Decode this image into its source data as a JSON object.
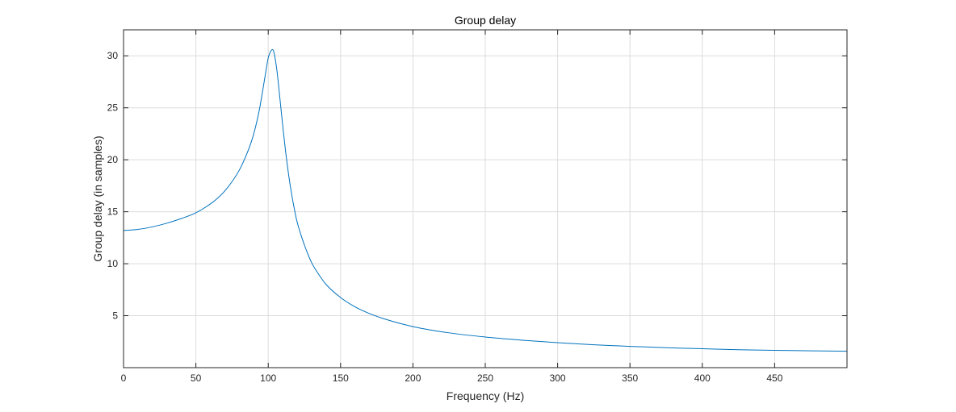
{
  "chart_data": {
    "type": "line",
    "title": "Group delay",
    "xlabel": "Frequency (Hz)",
    "ylabel": "Group delay (in samples)",
    "xlim": [
      0,
      500
    ],
    "ylim": [
      0,
      32.5
    ],
    "xticks": [
      0,
      50,
      100,
      150,
      200,
      250,
      300,
      350,
      400,
      450
    ],
    "yticks": [
      5,
      10,
      15,
      20,
      25,
      30
    ],
    "grid": true,
    "colors": {
      "line": "#0072BD",
      "grid": "#DCDCDC",
      "axis": "#262626"
    },
    "series": [
      {
        "x": [
          0,
          10,
          20,
          30,
          40,
          50,
          60,
          65,
          70,
          75,
          80,
          85,
          88,
          90,
          92,
          94,
          96,
          98,
          100,
          102,
          103,
          104,
          106,
          108,
          110,
          112,
          115,
          118,
          120,
          125,
          130,
          135,
          140,
          150,
          160,
          170,
          180,
          200,
          225,
          250,
          275,
          300,
          325,
          350,
          375,
          400,
          425,
          450,
          475,
          500
        ],
        "y": [
          13.2,
          13.3,
          13.55,
          13.9,
          14.35,
          14.9,
          15.75,
          16.3,
          17.0,
          17.9,
          19.0,
          20.5,
          21.6,
          22.5,
          23.6,
          24.9,
          26.5,
          28.2,
          29.8,
          30.5,
          30.6,
          30.3,
          28.6,
          26.0,
          23.3,
          20.8,
          17.7,
          15.3,
          14.0,
          11.8,
          10.1,
          8.95,
          8.0,
          6.75,
          5.85,
          5.2,
          4.7,
          3.95,
          3.35,
          2.95,
          2.65,
          2.4,
          2.2,
          2.05,
          1.92,
          1.82,
          1.73,
          1.67,
          1.62,
          1.58
        ]
      }
    ]
  }
}
